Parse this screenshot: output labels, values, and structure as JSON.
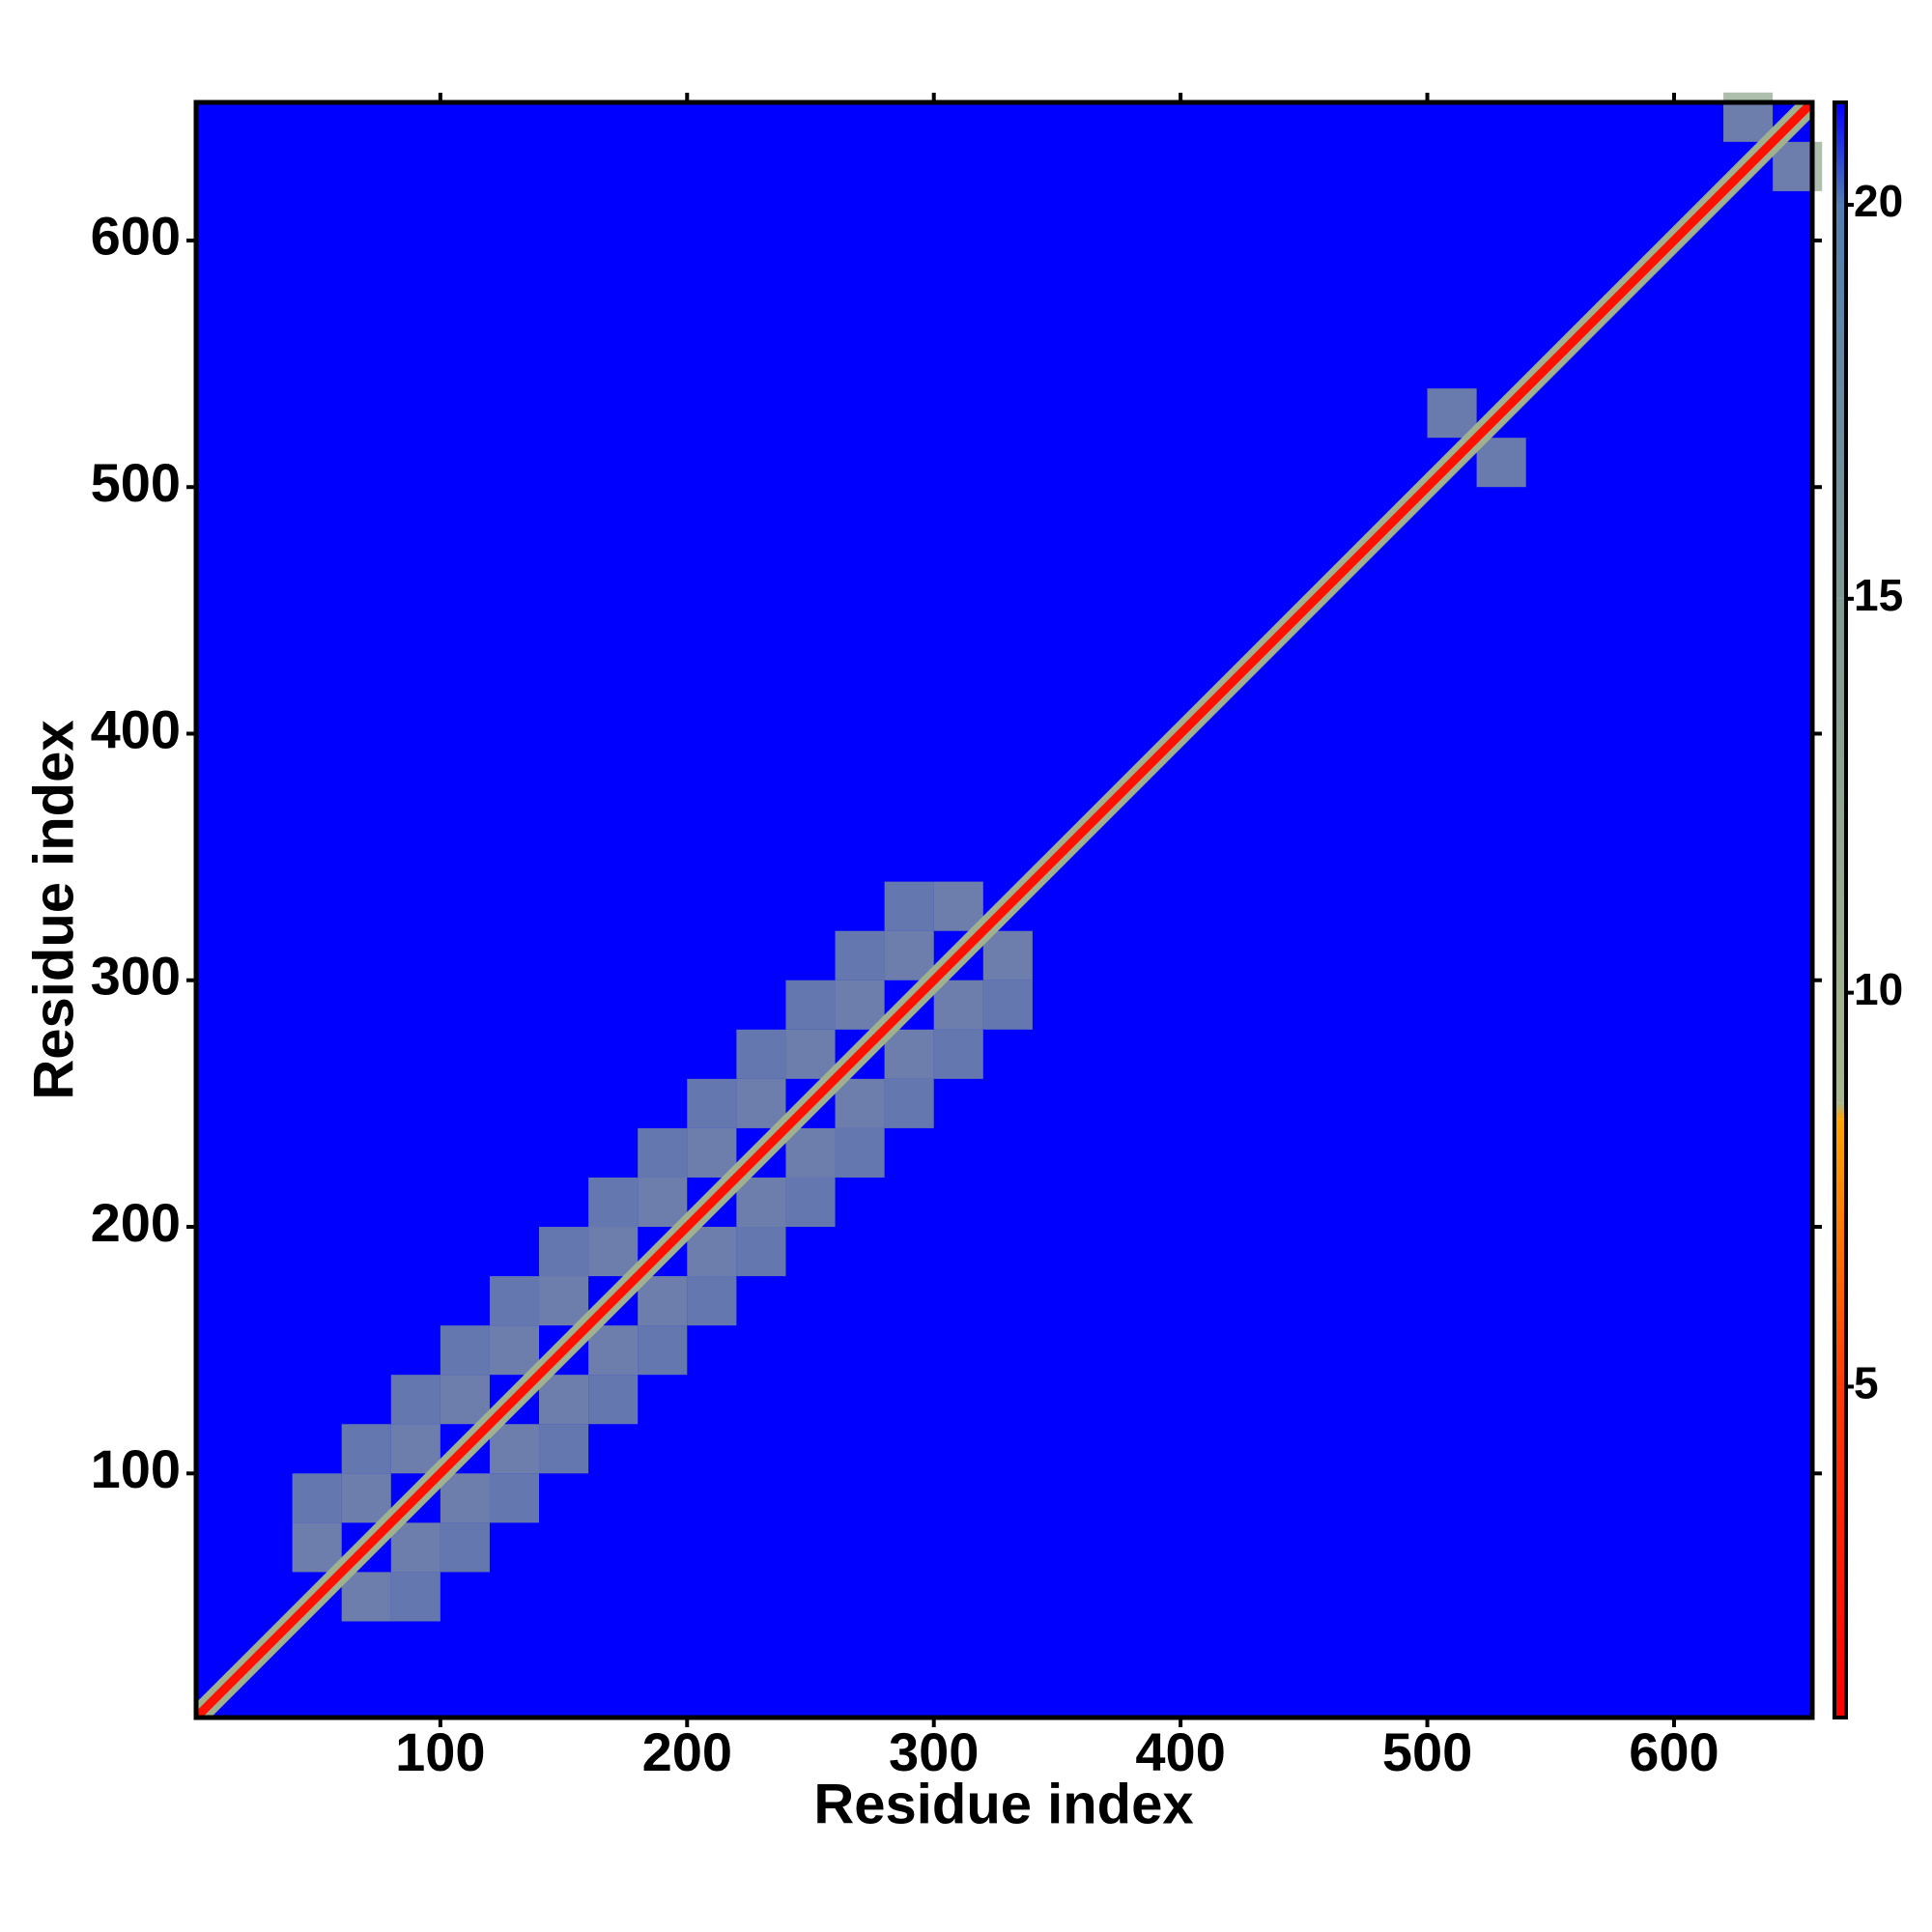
{
  "chart_data": {
    "type": "heatmap",
    "xlabel": "Residue index",
    "ylabel": "Residue index",
    "xlim": [
      1,
      656
    ],
    "ylim": [
      1,
      656
    ],
    "xticks": [
      100,
      200,
      300,
      400,
      500,
      600
    ],
    "yticks": [
      100,
      200,
      300,
      400,
      500,
      600
    ],
    "background": 21.3,
    "cell_size": 20,
    "cells": [
      [
        40,
        60,
        12
      ],
      [
        60,
        80,
        12
      ],
      [
        80,
        100,
        12
      ],
      [
        100,
        120,
        12
      ],
      [
        120,
        140,
        12
      ],
      [
        140,
        160,
        12
      ],
      [
        160,
        180,
        12
      ],
      [
        180,
        200,
        12
      ],
      [
        200,
        220,
        12
      ],
      [
        220,
        240,
        12
      ],
      [
        240,
        260,
        12
      ],
      [
        260,
        280,
        12
      ],
      [
        280,
        300,
        12
      ],
      [
        300,
        320,
        12
      ],
      [
        40,
        80,
        14
      ],
      [
        60,
        100,
        14
      ],
      [
        80,
        120,
        14
      ],
      [
        100,
        140,
        14
      ],
      [
        120,
        160,
        14
      ],
      [
        140,
        180,
        14
      ],
      [
        160,
        200,
        14
      ],
      [
        180,
        220,
        14
      ],
      [
        200,
        240,
        14
      ],
      [
        220,
        260,
        14
      ],
      [
        240,
        280,
        14
      ],
      [
        260,
        300,
        14
      ],
      [
        280,
        320,
        14
      ],
      [
        60,
        40,
        12
      ],
      [
        80,
        60,
        12
      ],
      [
        100,
        80,
        12
      ],
      [
        120,
        100,
        12
      ],
      [
        140,
        120,
        12
      ],
      [
        160,
        140,
        12
      ],
      [
        180,
        160,
        12
      ],
      [
        200,
        180,
        12
      ],
      [
        220,
        200,
        12
      ],
      [
        240,
        220,
        12
      ],
      [
        260,
        240,
        12
      ],
      [
        280,
        260,
        12
      ],
      [
        300,
        280,
        12
      ],
      [
        320,
        300,
        12
      ],
      [
        80,
        40,
        14
      ],
      [
        100,
        60,
        14
      ],
      [
        120,
        80,
        14
      ],
      [
        140,
        100,
        14
      ],
      [
        160,
        120,
        14
      ],
      [
        180,
        140,
        14
      ],
      [
        200,
        160,
        14
      ],
      [
        220,
        180,
        14
      ],
      [
        240,
        200,
        14
      ],
      [
        260,
        220,
        14
      ],
      [
        280,
        240,
        14
      ],
      [
        300,
        260,
        14
      ],
      [
        320,
        280,
        14
      ],
      [
        500,
        520,
        13
      ],
      [
        520,
        500,
        13
      ],
      [
        620,
        640,
        12
      ],
      [
        640,
        620,
        12
      ]
    ],
    "diagonal_band": [
      {
        "halfwidth": 6,
        "value": 10
      },
      {
        "halfwidth": 2.5,
        "value": 2
      }
    ],
    "colorbar": {
      "lim": [
        0.8,
        21.3
      ],
      "ticks": [
        5,
        10,
        15,
        20
      ]
    },
    "colorscale": [
      [
        0.8,
        "#ff0000"
      ],
      [
        5,
        "#ff3c00"
      ],
      [
        8.4,
        "#ffa500"
      ],
      [
        8.6,
        "#a8b88c"
      ],
      [
        15,
        "#7f9a94"
      ],
      [
        20,
        "#4f7fb0"
      ],
      [
        21.3,
        "#0000ff"
      ]
    ]
  }
}
